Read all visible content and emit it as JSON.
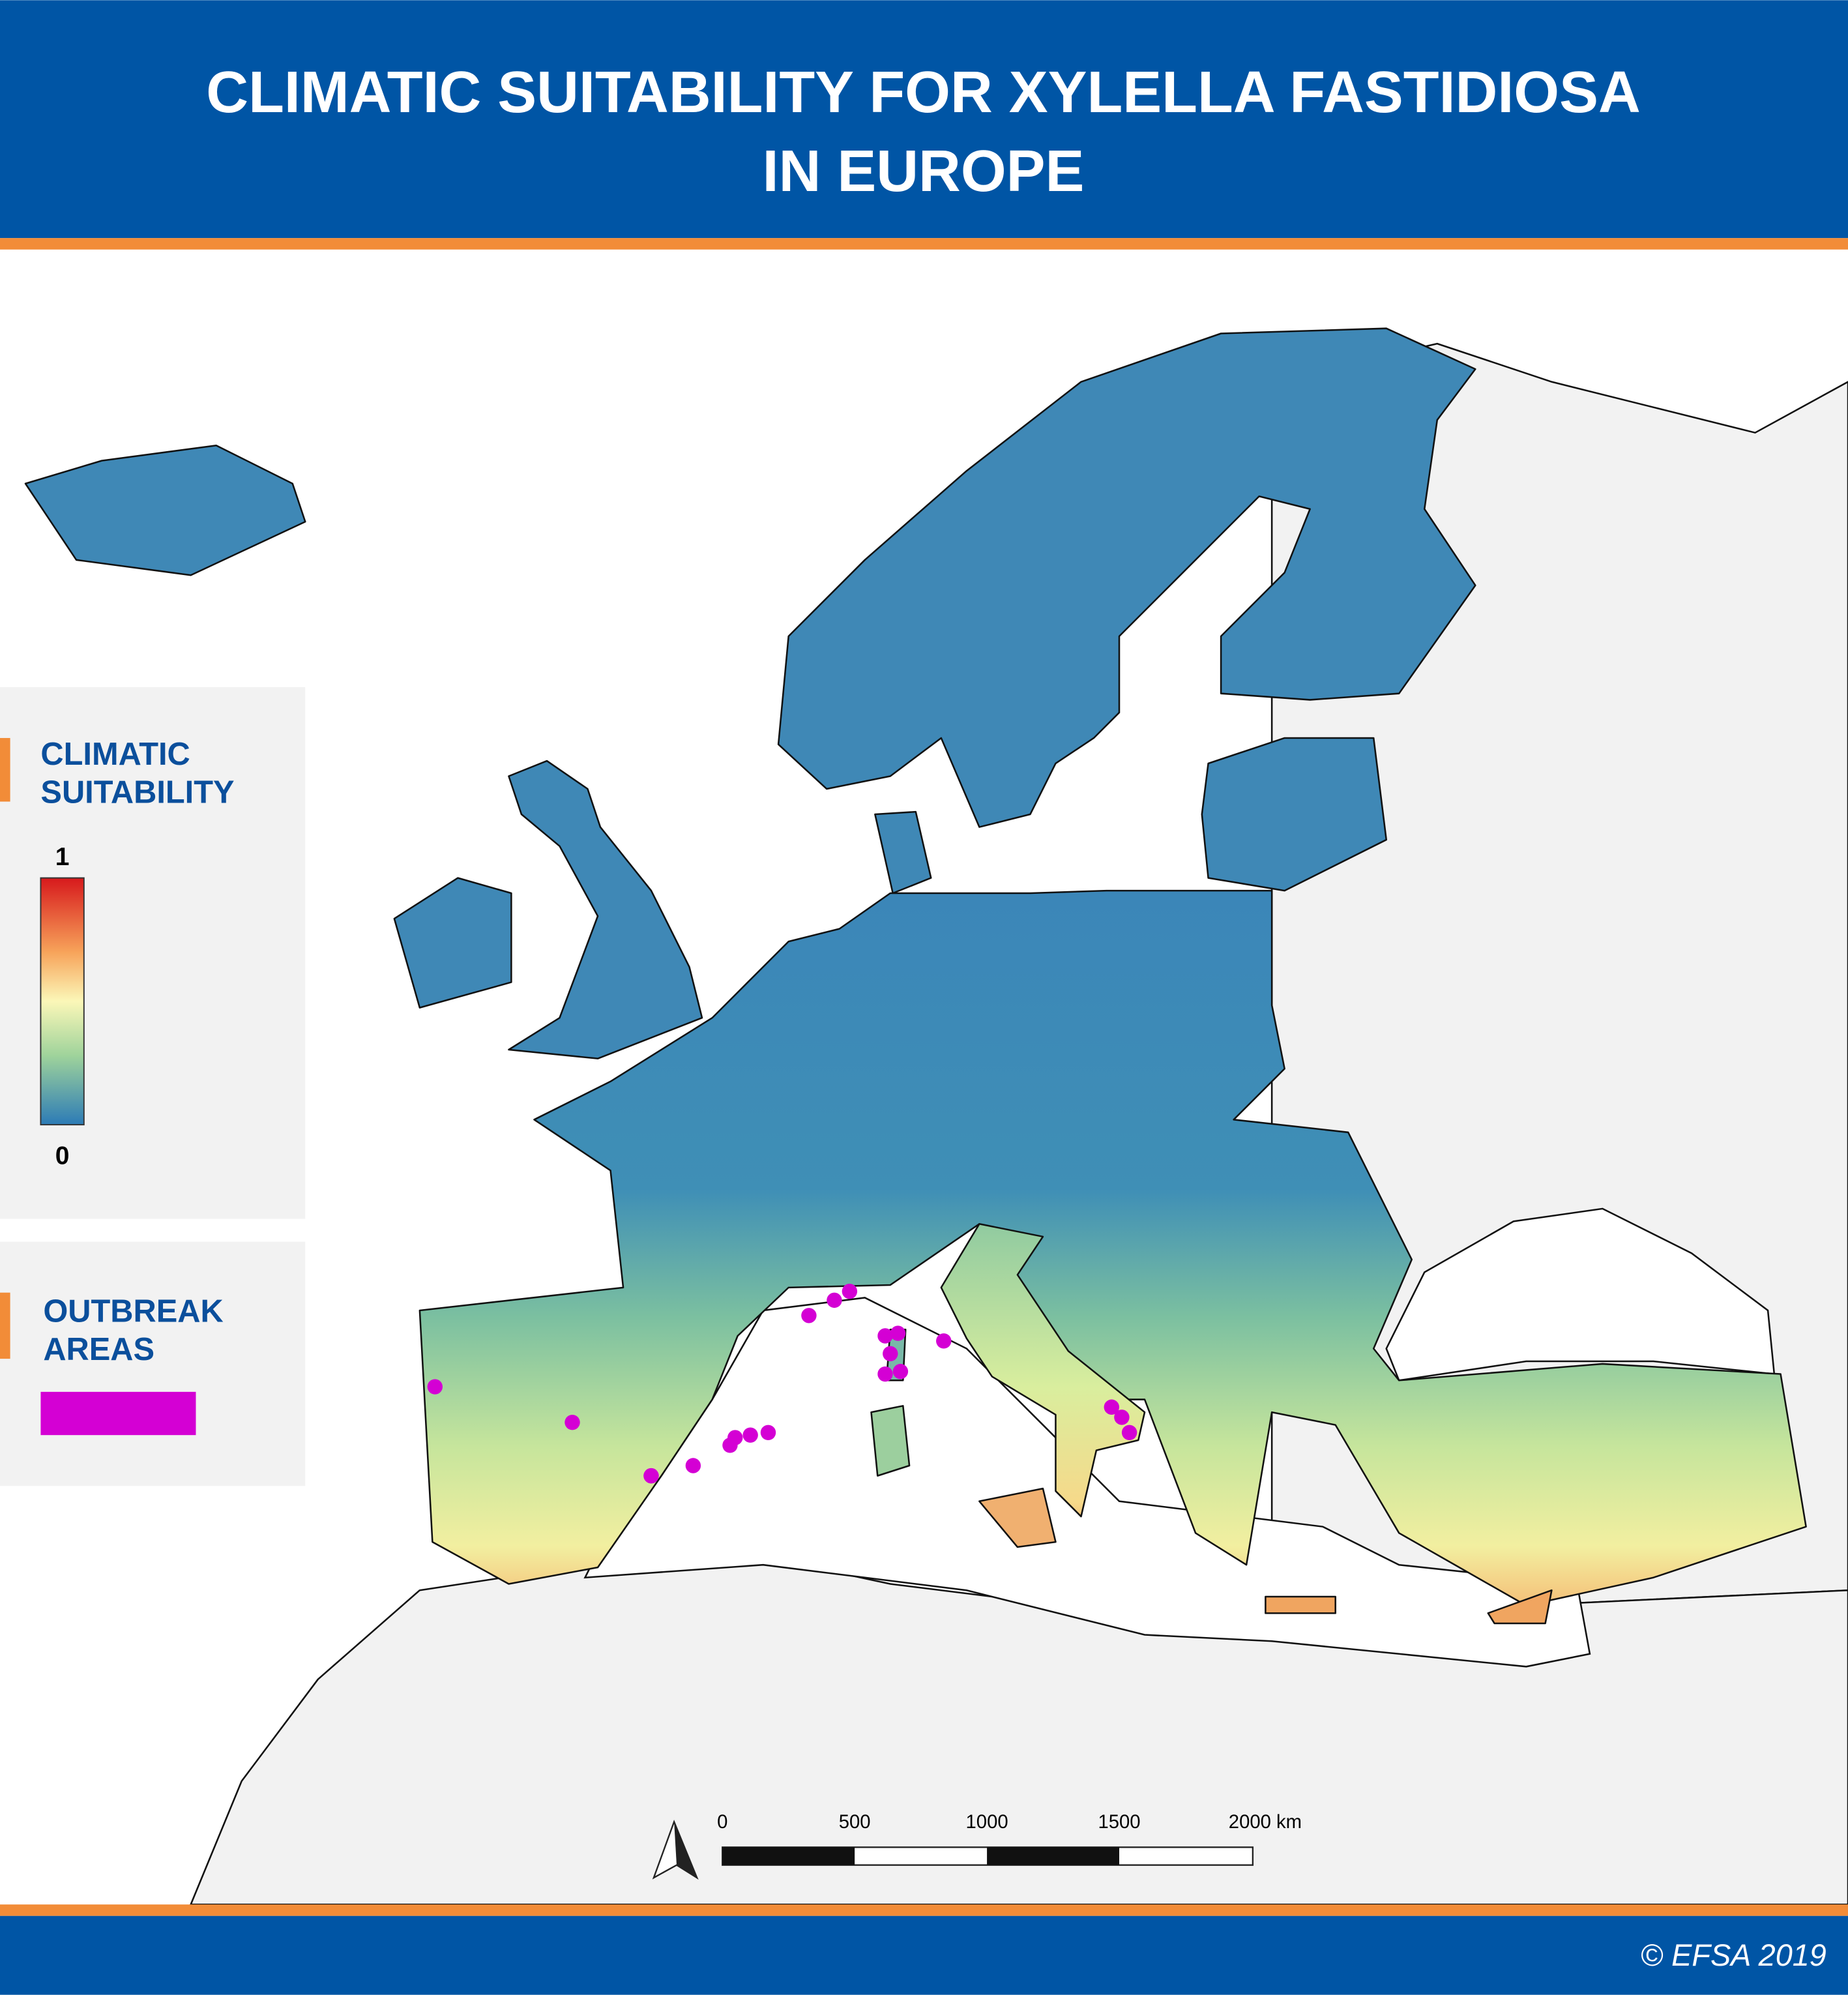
{
  "header": {
    "title_lines": [
      "CLIMATIC SUITABILITY FOR XYLELLA FASTIDIOSA",
      "IN EUROPE"
    ]
  },
  "legend": {
    "suitability": {
      "title_lines": [
        "CLIMATIC",
        "SUITABILITY"
      ],
      "max_label": "1",
      "min_label": "0"
    },
    "outbreak": {
      "title_lines": [
        "OUTBREAK",
        "AREAS"
      ]
    }
  },
  "scale_bar": {
    "labels": [
      "0",
      "500",
      "1000",
      "1500",
      "2000 km"
    ]
  },
  "footer": {
    "copyright": "© EFSA 2019"
  }
}
